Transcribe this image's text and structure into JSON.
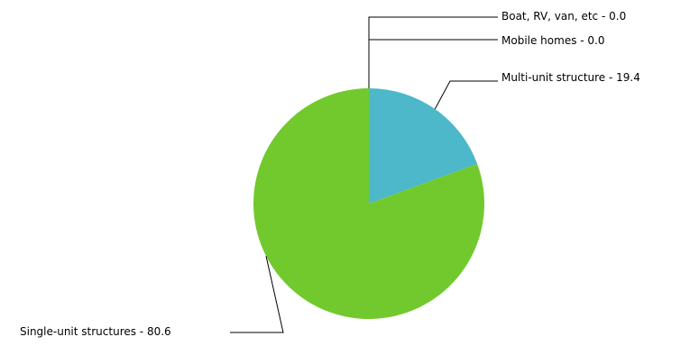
{
  "chart_data": {
    "type": "pie",
    "slices": [
      {
        "label": "Multi-unit structure",
        "value": 19.4,
        "color": "#4cb8c9",
        "display": "Multi-unit structure - 19.4"
      },
      {
        "label": "Single-unit structures",
        "value": 80.6,
        "color": "#72c92e",
        "display": "Single-unit structures - 80.6"
      },
      {
        "label": "Mobile homes",
        "value": 0.0,
        "color": "#4cb8c9",
        "display": "Mobile homes - 0.0"
      },
      {
        "label": "Boat, RV, van, etc",
        "value": 0.0,
        "color": "#4cb8c9",
        "display": "Boat, RV, van, etc - 0.0"
      }
    ],
    "legend": "none",
    "labels": "outside with leader lines"
  }
}
